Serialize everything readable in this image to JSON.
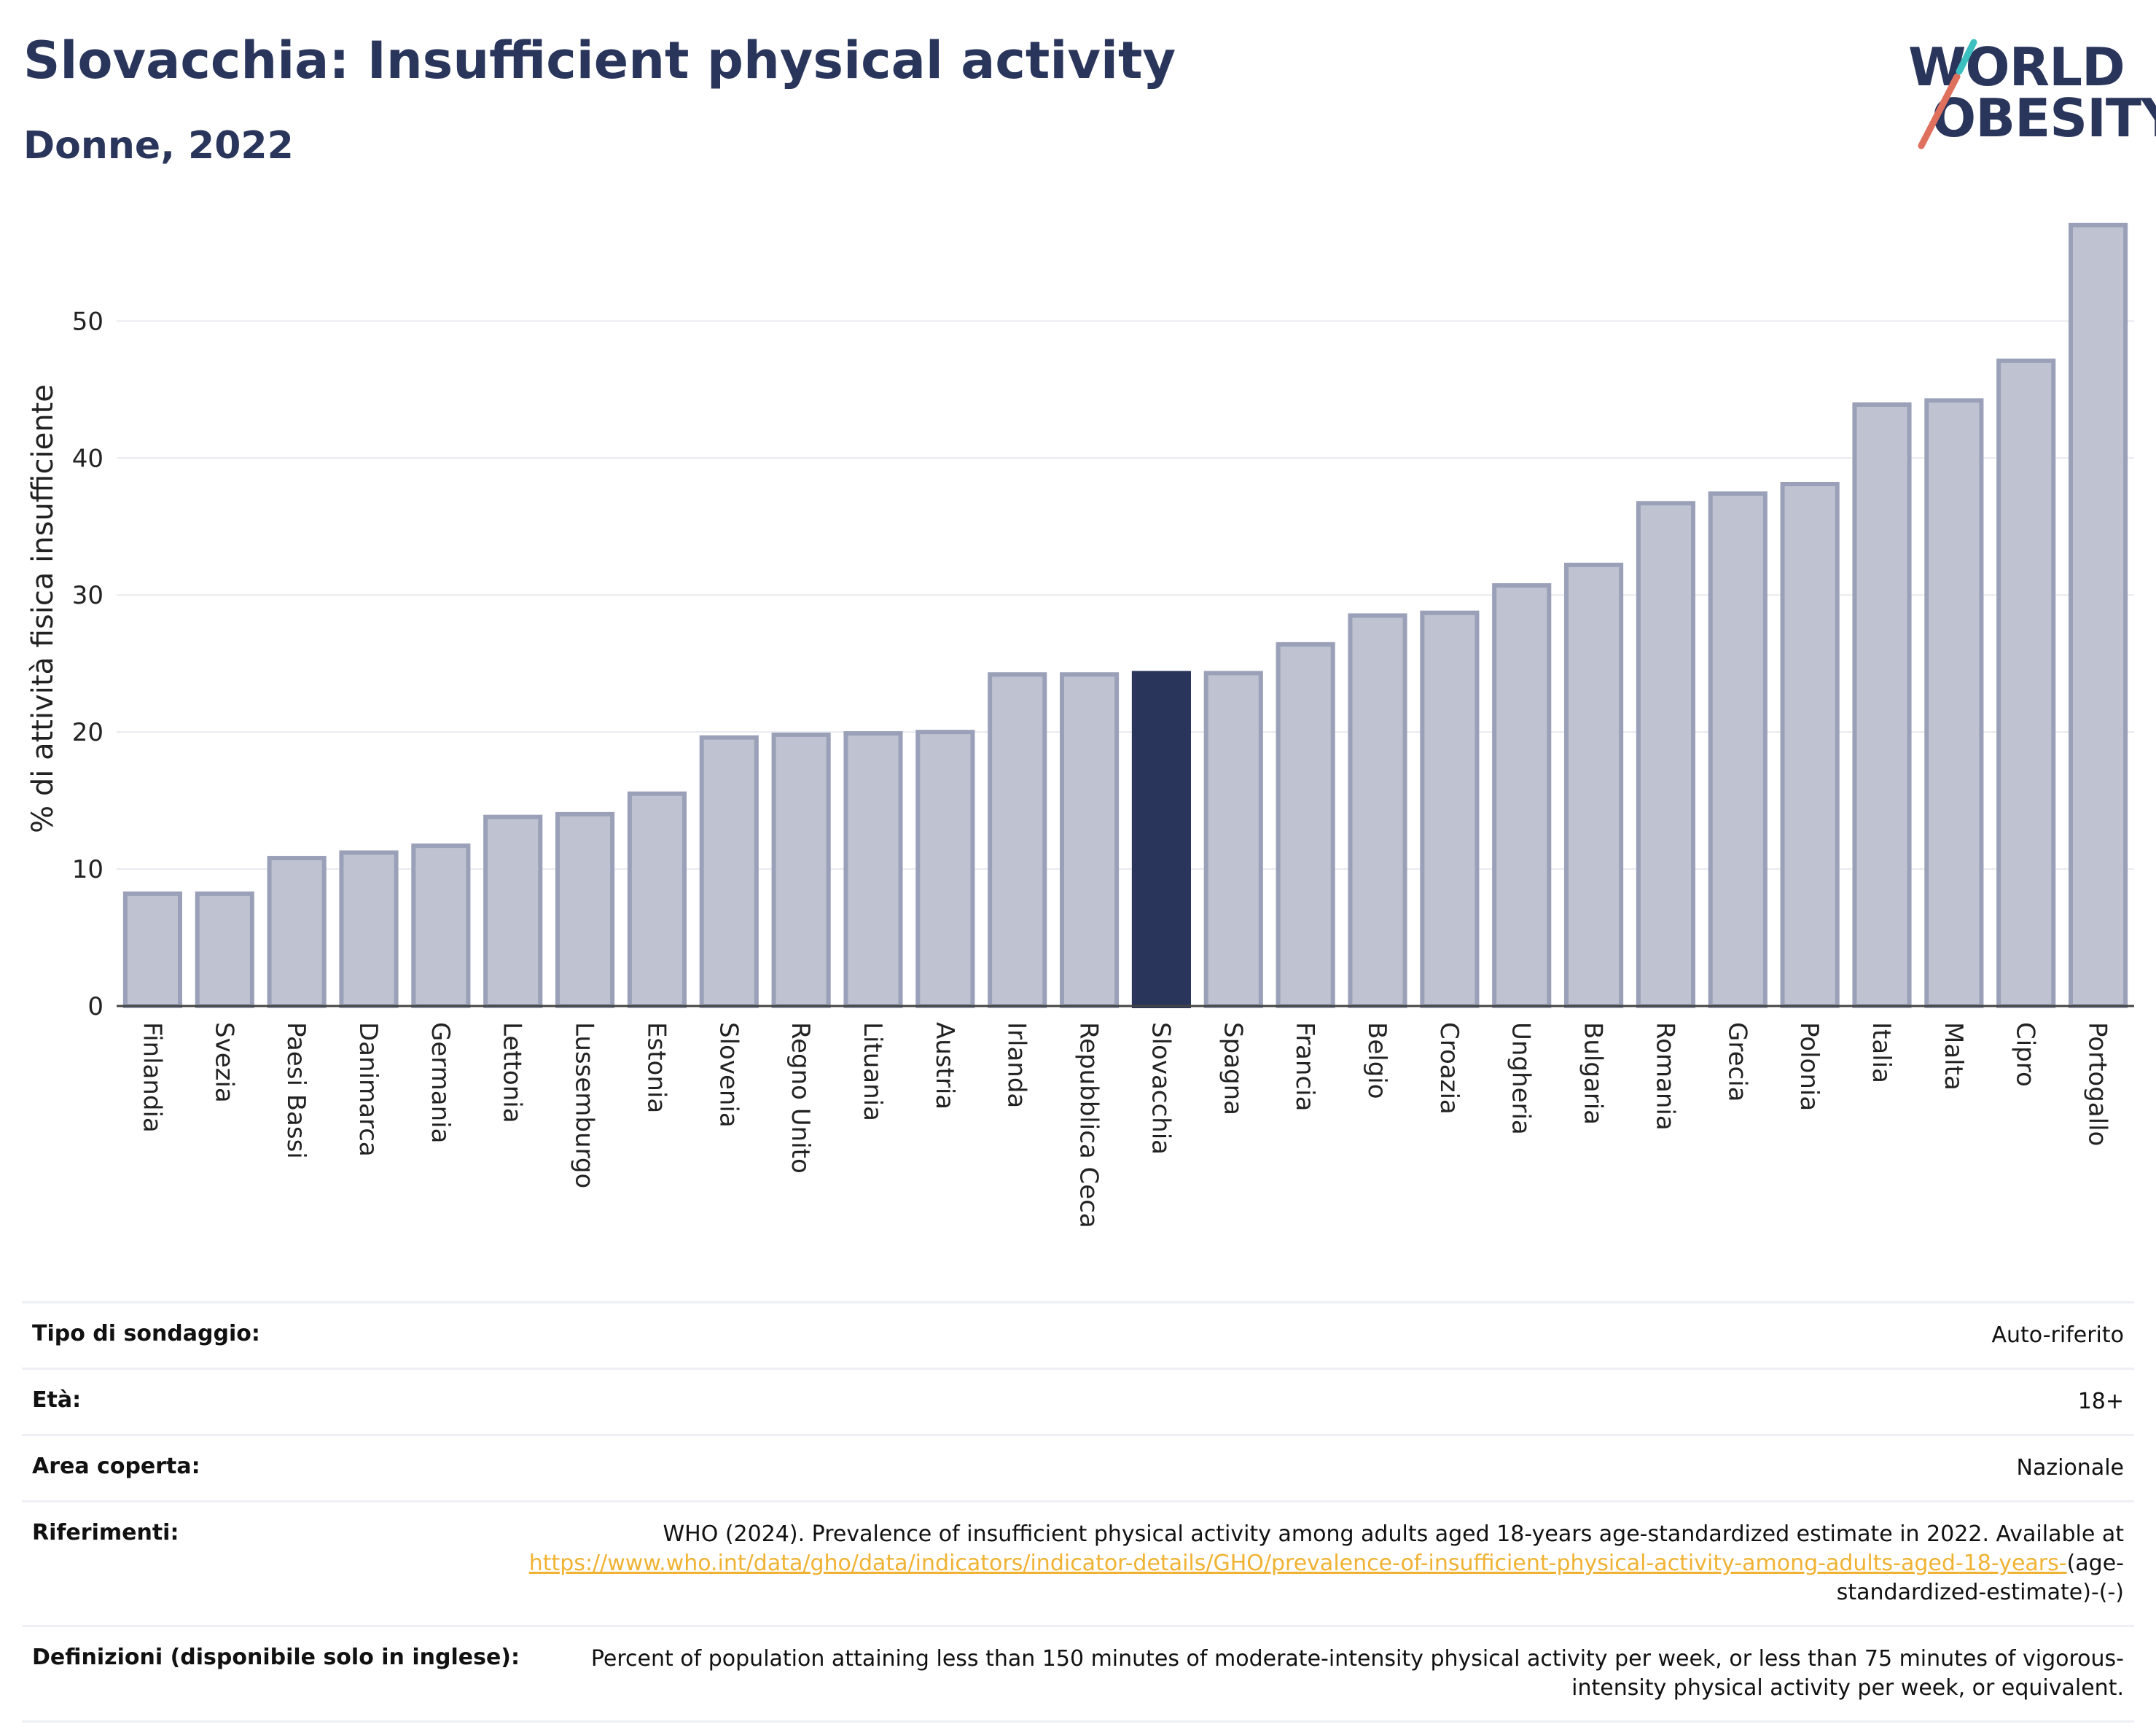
{
  "header": {
    "title": "Slovacchia: Insufficient physical activity",
    "subtitle": "Donne, 2022"
  },
  "logo": {
    "line1": "WORLD",
    "line2": "OBESITY",
    "accent_color": "#e0705e",
    "accent_color2": "#3cbfbf"
  },
  "colors": {
    "bar": "#bfc3d1",
    "bar_edge": "#9aa0b8",
    "highlight": "#2a355c",
    "grid": "#e8eaf0"
  },
  "chart_data": {
    "type": "bar",
    "highlight": "Slovacchia",
    "categories": [
      "Finlandia",
      "Svezia",
      "Paesi Bassi",
      "Danimarca",
      "Germania",
      "Lettonia",
      "Lussemburgo",
      "Estonia",
      "Slovenia",
      "Regno Unito",
      "Lituania",
      "Austria",
      "Irlanda",
      "Repubblica Ceca",
      "Slovacchia",
      "Spagna",
      "Francia",
      "Belgio",
      "Croazia",
      "Ungheria",
      "Bulgaria",
      "Romania",
      "Grecia",
      "Polonia",
      "Italia",
      "Malta",
      "Cipro",
      "Portogallo"
    ],
    "values": [
      8.2,
      8.2,
      10.8,
      11.2,
      11.7,
      13.8,
      14.0,
      15.5,
      19.6,
      19.8,
      19.9,
      20.0,
      24.2,
      24.2,
      24.3,
      24.3,
      26.4,
      28.5,
      28.7,
      30.7,
      32.2,
      36.7,
      37.4,
      38.1,
      43.9,
      44.2,
      47.1,
      57.0
    ],
    "ylabel": "% di attività fisica insufficiente",
    "yticks": [
      0,
      10,
      20,
      30,
      40,
      50
    ],
    "ylim": [
      0,
      58
    ],
    "grid": true
  },
  "info": {
    "rows": [
      {
        "label": "Tipo di sondaggio:",
        "value": "Auto-riferito"
      },
      {
        "label": "Età:",
        "value": "18+"
      },
      {
        "label": "Area coperta:",
        "value": "Nazionale"
      },
      {
        "label": "Riferimenti:",
        "value_prefix": "WHO (2024). Prevalence of insufficient physical activity among adults aged 18-years age-standardized estimate in 2022. Available at",
        "link": "https://www.who.int/data/gho/data/indicators/indicator-details/GHO/prevalence-of-insufficient-physical-activity-among-adults-aged-18-years-",
        "value_suffix": "(age-standardized-estimate)-(-)"
      },
      {
        "label": "Definizioni (disponibile solo in inglese):",
        "value": "Percent of population attaining less than 150 minutes of moderate-intensity physical activity per week, or less than 75 minutes of vigorous-intensity physical activity per week, or equivalent."
      }
    ]
  }
}
